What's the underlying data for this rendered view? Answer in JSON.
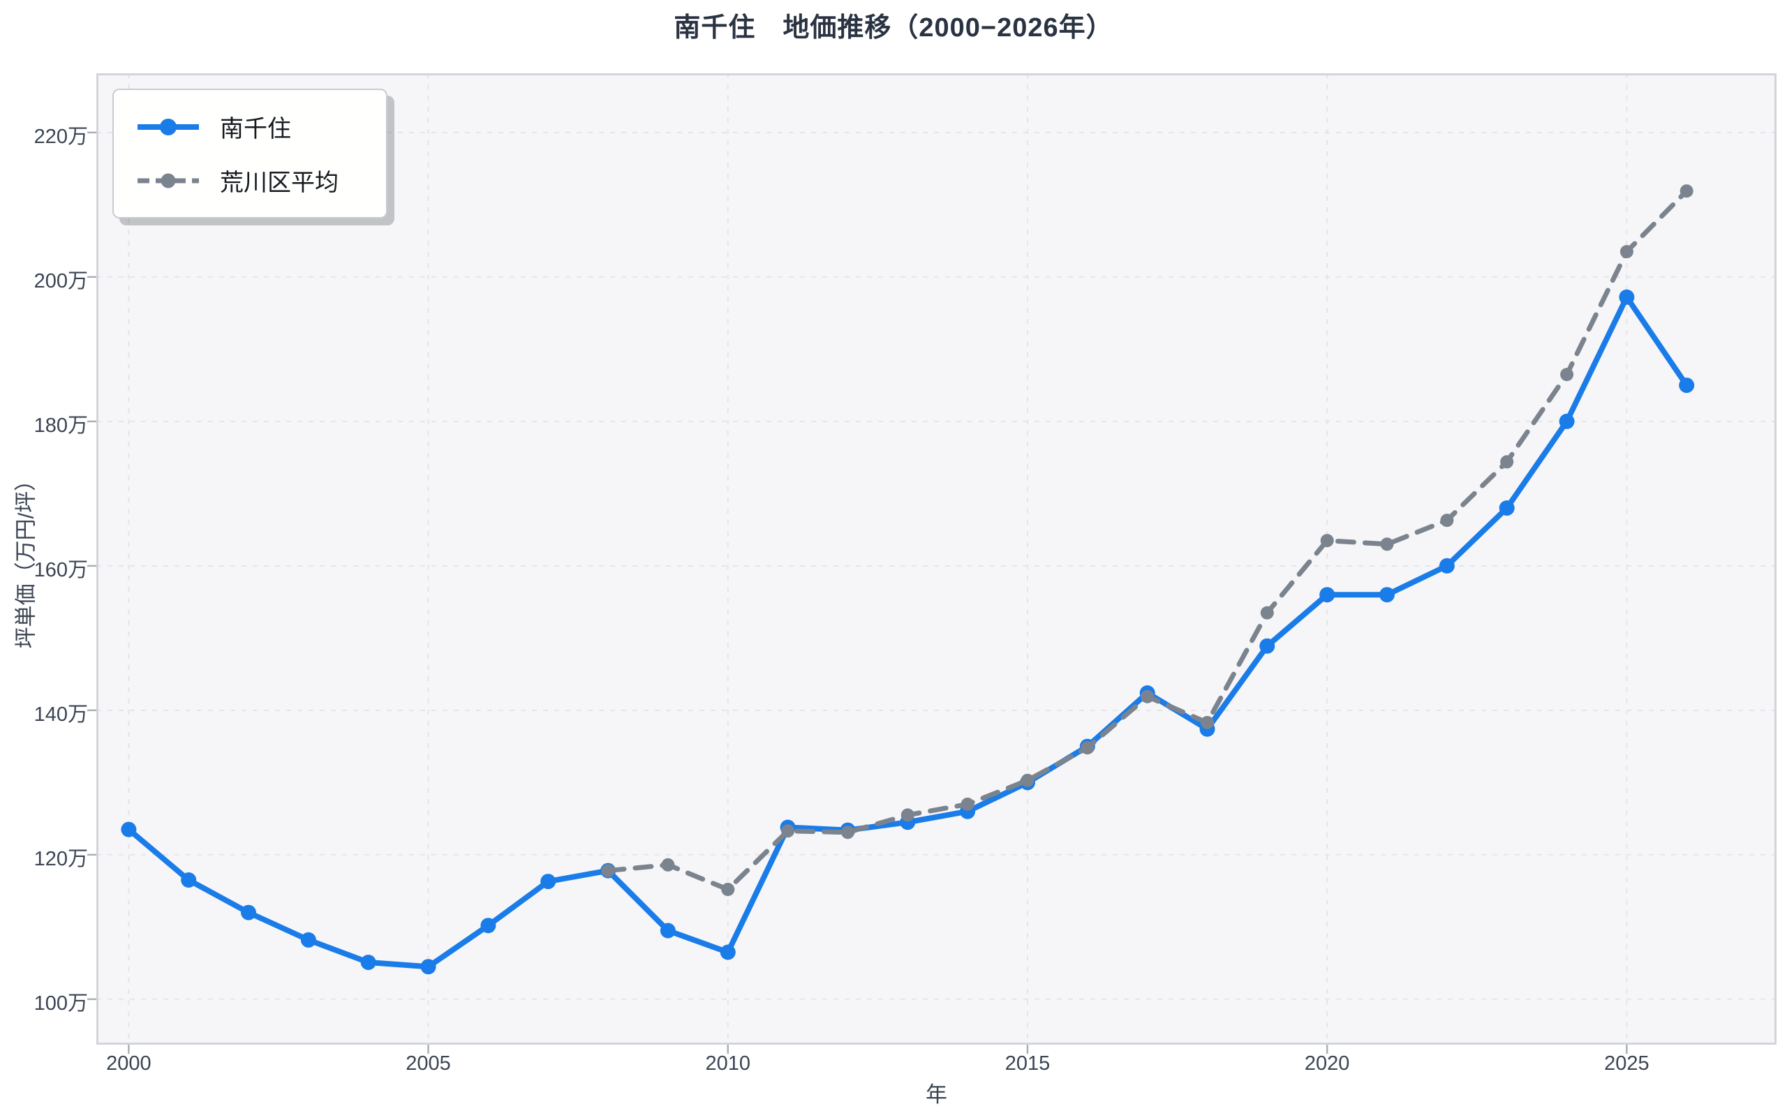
{
  "title": "南千住　地価推移（2000−2026年）",
  "axes": {
    "x_label": "年",
    "y_label": "坪単価（万円/坪）"
  },
  "legend": {
    "position": "upper left",
    "items": [
      {
        "label": "南千住",
        "style": "solid"
      },
      {
        "label": "荒川区平均",
        "style": "dashed"
      }
    ]
  },
  "colors": {
    "series_main": "#1a7ce8",
    "series_average": "#7b848e",
    "title_text": "#2a3342",
    "tick_text": "#3b4453",
    "legend_text": "#15191f",
    "plot_background": "#f6f6f8",
    "figure_background": "#ffffff",
    "gridline": "#e4e5e9",
    "spine": "#d1d5db",
    "tick_mark": "#a9b0b9"
  },
  "chart_data": {
    "type": "line",
    "title": "南千住　地価推移（2000−2026年）",
    "xlabel": "年",
    "ylabel": "坪単価（万円/坪）",
    "x": [
      2000,
      2001,
      2002,
      2003,
      2004,
      2005,
      2006,
      2007,
      2008,
      2009,
      2010,
      2011,
      2012,
      2013,
      2014,
      2015,
      2016,
      2017,
      2018,
      2019,
      2020,
      2021,
      2022,
      2023,
      2024,
      2025,
      2026
    ],
    "series": [
      {
        "name": "南千住",
        "color": "#1a7ce8",
        "style": "solid",
        "line_width": 8,
        "marker_radius": 11,
        "values": [
          123.5,
          116.5,
          112.0,
          108.2,
          105.1,
          104.5,
          110.2,
          116.3,
          117.8,
          109.5,
          106.5,
          123.8,
          123.4,
          124.5,
          126.0,
          130.0,
          135.0,
          142.4,
          137.4,
          148.9,
          156.0,
          156.0,
          160.0,
          168.0,
          180.0,
          197.2,
          185.0
        ]
      },
      {
        "name": "荒川区平均",
        "color": "#7b848e",
        "style": "dashed",
        "line_width": 7,
        "marker_radius": 9.5,
        "values": [
          null,
          null,
          null,
          null,
          null,
          null,
          null,
          null,
          117.8,
          118.6,
          115.2,
          123.3,
          123.1,
          125.5,
          127.0,
          130.3,
          134.8,
          141.9,
          138.3,
          153.5,
          163.5,
          163.0,
          166.3,
          174.4,
          186.5,
          203.5,
          211.9
        ]
      }
    ],
    "xlim": [
      1999.46,
      2027.5
    ],
    "ylim": [
      93.7,
      228.2
    ],
    "xticks": {
      "values": [
        2000,
        2005,
        2010,
        2015,
        2020,
        2025
      ],
      "labels": [
        "2000",
        "2005",
        "2010",
        "2015",
        "2020",
        "2025"
      ]
    },
    "yticks": {
      "values": [
        100,
        120,
        140,
        160,
        180,
        200,
        220
      ],
      "labels": [
        "100万",
        "120万",
        "140万",
        "160万",
        "180万",
        "200万",
        "220万"
      ]
    },
    "grid": true,
    "grid_style": "dashed",
    "legend_position": "upper left"
  }
}
